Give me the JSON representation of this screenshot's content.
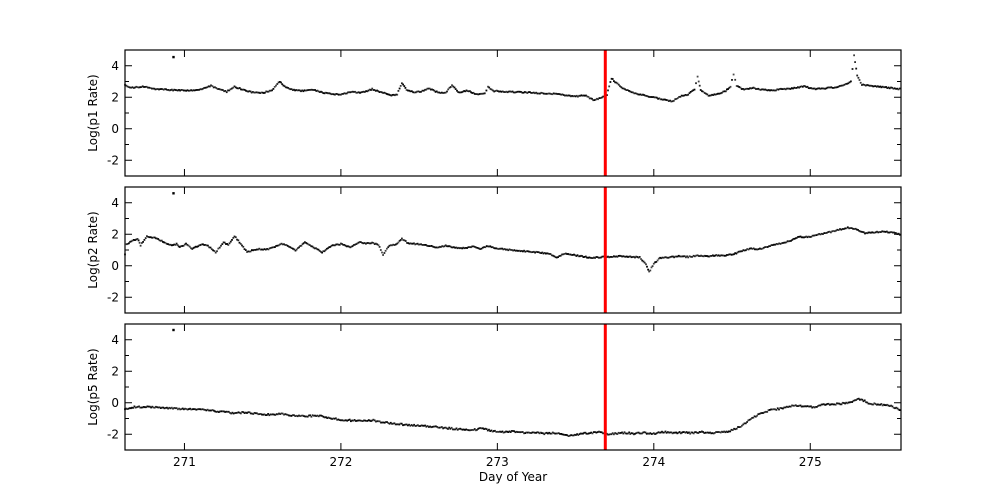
{
  "figure": {
    "background": "#ffffff",
    "title": ""
  },
  "chart_data": {
    "type": "scatter",
    "xlabel": "Day of Year",
    "xlim": [
      270.62,
      275.58
    ],
    "ylim": [
      -3,
      5
    ],
    "x_ticks": [
      271,
      272,
      273,
      274,
      275
    ],
    "y_ticks_major": [
      -2,
      0,
      2,
      4
    ],
    "y_ticks_minor": [
      -1,
      1,
      3
    ],
    "grid": false,
    "marker_color": "#000000",
    "event_line": {
      "x": 273.69,
      "color": "#ff0000",
      "width": 3
    },
    "panels": [
      {
        "ylabel": "Log(p1 Rate)",
        "outlier": [
          270.93,
          4.55
        ],
        "points": [
          [
            270.62,
            2.78
          ],
          [
            270.66,
            2.6
          ],
          [
            270.7,
            2.64
          ],
          [
            270.75,
            2.68
          ],
          [
            270.8,
            2.52
          ],
          [
            270.86,
            2.5
          ],
          [
            270.92,
            2.46
          ],
          [
            270.98,
            2.44
          ],
          [
            271.05,
            2.42
          ],
          [
            271.11,
            2.5
          ],
          [
            271.17,
            2.74
          ],
          [
            271.22,
            2.5
          ],
          [
            271.27,
            2.35
          ],
          [
            271.32,
            2.66
          ],
          [
            271.37,
            2.5
          ],
          [
            271.43,
            2.32
          ],
          [
            271.5,
            2.28
          ],
          [
            271.56,
            2.44
          ],
          [
            271.61,
            3.0
          ],
          [
            271.64,
            2.68
          ],
          [
            271.7,
            2.46
          ],
          [
            271.76,
            2.4
          ],
          [
            271.82,
            2.48
          ],
          [
            271.88,
            2.3
          ],
          [
            271.94,
            2.22
          ],
          [
            272.0,
            2.16
          ],
          [
            272.06,
            2.34
          ],
          [
            272.13,
            2.28
          ],
          [
            272.2,
            2.52
          ],
          [
            272.27,
            2.28
          ],
          [
            272.33,
            2.12
          ],
          [
            272.36,
            2.2
          ],
          [
            272.39,
            2.9
          ],
          [
            272.42,
            2.45
          ],
          [
            272.47,
            2.32
          ],
          [
            272.53,
            2.4
          ],
          [
            272.56,
            2.58
          ],
          [
            272.62,
            2.3
          ],
          [
            272.67,
            2.26
          ],
          [
            272.71,
            2.78
          ],
          [
            272.75,
            2.3
          ],
          [
            272.81,
            2.42
          ],
          [
            272.87,
            2.18
          ],
          [
            272.92,
            2.25
          ],
          [
            272.94,
            2.66
          ],
          [
            272.98,
            2.4
          ],
          [
            273.05,
            2.36
          ],
          [
            273.12,
            2.32
          ],
          [
            273.2,
            2.3
          ],
          [
            273.28,
            2.26
          ],
          [
            273.36,
            2.22
          ],
          [
            273.44,
            2.12
          ],
          [
            273.5,
            2.05
          ],
          [
            273.56,
            2.12
          ],
          [
            273.62,
            1.8
          ],
          [
            273.66,
            1.98
          ],
          [
            273.7,
            2.15
          ],
          [
            273.73,
            3.2
          ],
          [
            273.76,
            2.9
          ],
          [
            273.8,
            2.6
          ],
          [
            273.85,
            2.35
          ],
          [
            273.9,
            2.2
          ],
          [
            273.96,
            2.08
          ],
          [
            274.02,
            1.95
          ],
          [
            274.08,
            1.8
          ],
          [
            274.12,
            1.75
          ],
          [
            274.17,
            2.05
          ],
          [
            274.22,
            2.18
          ],
          [
            274.26,
            2.5
          ],
          [
            274.28,
            3.3
          ],
          [
            274.3,
            2.45
          ],
          [
            274.35,
            2.12
          ],
          [
            274.41,
            2.2
          ],
          [
            274.46,
            2.4
          ],
          [
            274.49,
            2.7
          ],
          [
            274.51,
            3.45
          ],
          [
            274.53,
            2.75
          ],
          [
            274.57,
            2.5
          ],
          [
            274.63,
            2.6
          ],
          [
            274.69,
            2.48
          ],
          [
            274.75,
            2.42
          ],
          [
            274.82,
            2.52
          ],
          [
            274.89,
            2.56
          ],
          [
            274.96,
            2.7
          ],
          [
            275.02,
            2.52
          ],
          [
            275.08,
            2.56
          ],
          [
            275.15,
            2.62
          ],
          [
            275.21,
            2.72
          ],
          [
            275.26,
            3.0
          ],
          [
            275.28,
            4.65
          ],
          [
            275.3,
            3.4
          ],
          [
            275.33,
            2.8
          ],
          [
            275.38,
            2.72
          ],
          [
            275.44,
            2.68
          ],
          [
            275.5,
            2.6
          ],
          [
            275.58,
            2.52
          ]
        ]
      },
      {
        "ylabel": "Log(p2 Rate)",
        "outlier": [
          270.93,
          4.6
        ],
        "points": [
          [
            270.62,
            0.7
          ],
          [
            270.63,
            1.35
          ],
          [
            270.66,
            1.55
          ],
          [
            270.7,
            1.72
          ],
          [
            270.72,
            1.3
          ],
          [
            270.76,
            1.86
          ],
          [
            270.81,
            1.78
          ],
          [
            270.87,
            1.5
          ],
          [
            270.92,
            1.28
          ],
          [
            270.95,
            1.38
          ],
          [
            270.97,
            1.17
          ],
          [
            271.01,
            1.38
          ],
          [
            271.05,
            1.06
          ],
          [
            271.11,
            1.38
          ],
          [
            271.15,
            1.27
          ],
          [
            271.2,
            0.85
          ],
          [
            271.25,
            1.49
          ],
          [
            271.28,
            1.3
          ],
          [
            271.32,
            1.88
          ],
          [
            271.36,
            1.4
          ],
          [
            271.4,
            0.88
          ],
          [
            271.47,
            1.06
          ],
          [
            271.52,
            1.02
          ],
          [
            271.57,
            1.15
          ],
          [
            271.62,
            1.38
          ],
          [
            271.66,
            1.27
          ],
          [
            271.71,
            0.96
          ],
          [
            271.77,
            1.49
          ],
          [
            271.81,
            1.27
          ],
          [
            271.88,
            0.85
          ],
          [
            271.94,
            1.27
          ],
          [
            272.0,
            1.38
          ],
          [
            272.06,
            1.17
          ],
          [
            272.12,
            1.52
          ],
          [
            272.16,
            1.4
          ],
          [
            272.2,
            1.46
          ],
          [
            272.24,
            1.32
          ],
          [
            272.27,
            0.7
          ],
          [
            272.31,
            1.28
          ],
          [
            272.36,
            1.38
          ],
          [
            272.39,
            1.73
          ],
          [
            272.43,
            1.42
          ],
          [
            272.49,
            1.38
          ],
          [
            272.55,
            1.3
          ],
          [
            272.61,
            1.16
          ],
          [
            272.67,
            1.28
          ],
          [
            272.73,
            1.16
          ],
          [
            272.79,
            1.12
          ],
          [
            272.84,
            1.22
          ],
          [
            272.89,
            1.06
          ],
          [
            272.94,
            1.26
          ],
          [
            273.0,
            1.1
          ],
          [
            273.07,
            1.02
          ],
          [
            273.14,
            0.96
          ],
          [
            273.21,
            0.9
          ],
          [
            273.28,
            0.82
          ],
          [
            273.34,
            0.74
          ],
          [
            273.38,
            0.5
          ],
          [
            273.43,
            0.78
          ],
          [
            273.49,
            0.68
          ],
          [
            273.55,
            0.58
          ],
          [
            273.61,
            0.5
          ],
          [
            273.67,
            0.56
          ],
          [
            273.73,
            0.56
          ],
          [
            273.79,
            0.6
          ],
          [
            273.85,
            0.56
          ],
          [
            273.91,
            0.54
          ],
          [
            273.95,
            0.1
          ],
          [
            273.97,
            -0.4
          ],
          [
            274.0,
            0.12
          ],
          [
            274.04,
            0.5
          ],
          [
            274.1,
            0.54
          ],
          [
            274.16,
            0.6
          ],
          [
            274.22,
            0.56
          ],
          [
            274.28,
            0.64
          ],
          [
            274.34,
            0.6
          ],
          [
            274.4,
            0.66
          ],
          [
            274.46,
            0.64
          ],
          [
            274.52,
            0.78
          ],
          [
            274.58,
            1.0
          ],
          [
            274.63,
            1.1
          ],
          [
            274.67,
            1.04
          ],
          [
            274.72,
            1.2
          ],
          [
            274.76,
            1.32
          ],
          [
            274.81,
            1.42
          ],
          [
            274.87,
            1.58
          ],
          [
            274.93,
            1.85
          ],
          [
            274.99,
            1.82
          ],
          [
            275.04,
            1.96
          ],
          [
            275.09,
            2.06
          ],
          [
            275.14,
            2.16
          ],
          [
            275.19,
            2.3
          ],
          [
            275.24,
            2.42
          ],
          [
            275.29,
            2.32
          ],
          [
            275.35,
            2.08
          ],
          [
            275.41,
            2.12
          ],
          [
            275.46,
            2.18
          ],
          [
            275.52,
            2.12
          ],
          [
            275.58,
            1.96
          ]
        ]
      },
      {
        "ylabel": "Log(p5 Rate)",
        "outlier": [
          270.93,
          4.62
        ],
        "points": [
          [
            270.62,
            -0.38
          ],
          [
            270.68,
            -0.28
          ],
          [
            270.74,
            -0.25
          ],
          [
            270.81,
            -0.3
          ],
          [
            270.88,
            -0.34
          ],
          [
            270.95,
            -0.37
          ],
          [
            271.02,
            -0.4
          ],
          [
            271.1,
            -0.43
          ],
          [
            271.18,
            -0.5
          ],
          [
            271.26,
            -0.6
          ],
          [
            271.33,
            -0.66
          ],
          [
            271.4,
            -0.6
          ],
          [
            271.48,
            -0.73
          ],
          [
            271.55,
            -0.76
          ],
          [
            271.62,
            -0.72
          ],
          [
            271.7,
            -0.82
          ],
          [
            271.78,
            -0.87
          ],
          [
            271.85,
            -0.8
          ],
          [
            271.92,
            -0.96
          ],
          [
            272.0,
            -1.08
          ],
          [
            272.08,
            -1.13
          ],
          [
            272.14,
            -1.18
          ],
          [
            272.2,
            -1.11
          ],
          [
            272.28,
            -1.26
          ],
          [
            272.35,
            -1.33
          ],
          [
            272.42,
            -1.4
          ],
          [
            272.5,
            -1.46
          ],
          [
            272.57,
            -1.52
          ],
          [
            272.63,
            -1.56
          ],
          [
            272.7,
            -1.63
          ],
          [
            272.77,
            -1.7
          ],
          [
            272.84,
            -1.74
          ],
          [
            272.9,
            -1.64
          ],
          [
            272.97,
            -1.79
          ],
          [
            273.04,
            -1.86
          ],
          [
            273.1,
            -1.8
          ],
          [
            273.17,
            -1.91
          ],
          [
            273.24,
            -1.86
          ],
          [
            273.3,
            -1.96
          ],
          [
            273.37,
            -1.91
          ],
          [
            273.43,
            -2.05
          ],
          [
            273.48,
            -2.1
          ],
          [
            273.54,
            -1.96
          ],
          [
            273.6,
            -1.91
          ],
          [
            273.65,
            -1.86
          ],
          [
            273.7,
            -2.0
          ],
          [
            273.76,
            -1.96
          ],
          [
            273.82,
            -1.91
          ],
          [
            273.88,
            -1.96
          ],
          [
            273.94,
            -1.91
          ],
          [
            274.0,
            -1.96
          ],
          [
            274.06,
            -1.86
          ],
          [
            274.12,
            -1.91
          ],
          [
            274.18,
            -1.89
          ],
          [
            274.24,
            -1.93
          ],
          [
            274.3,
            -1.86
          ],
          [
            274.36,
            -1.91
          ],
          [
            274.42,
            -1.89
          ],
          [
            274.48,
            -1.81
          ],
          [
            274.53,
            -1.62
          ],
          [
            274.58,
            -1.35
          ],
          [
            274.62,
            -1.05
          ],
          [
            274.66,
            -0.8
          ],
          [
            274.7,
            -0.62
          ],
          [
            274.75,
            -0.46
          ],
          [
            274.8,
            -0.38
          ],
          [
            274.85,
            -0.3
          ],
          [
            274.9,
            -0.16
          ],
          [
            274.96,
            -0.23
          ],
          [
            275.02,
            -0.28
          ],
          [
            275.08,
            -0.13
          ],
          [
            275.14,
            -0.1
          ],
          [
            275.2,
            -0.06
          ],
          [
            275.26,
            0.04
          ],
          [
            275.31,
            0.25
          ],
          [
            275.34,
            0.15
          ],
          [
            275.38,
            -0.06
          ],
          [
            275.44,
            -0.1
          ],
          [
            275.5,
            -0.16
          ],
          [
            275.55,
            -0.35
          ],
          [
            275.58,
            -0.52
          ]
        ]
      }
    ]
  }
}
